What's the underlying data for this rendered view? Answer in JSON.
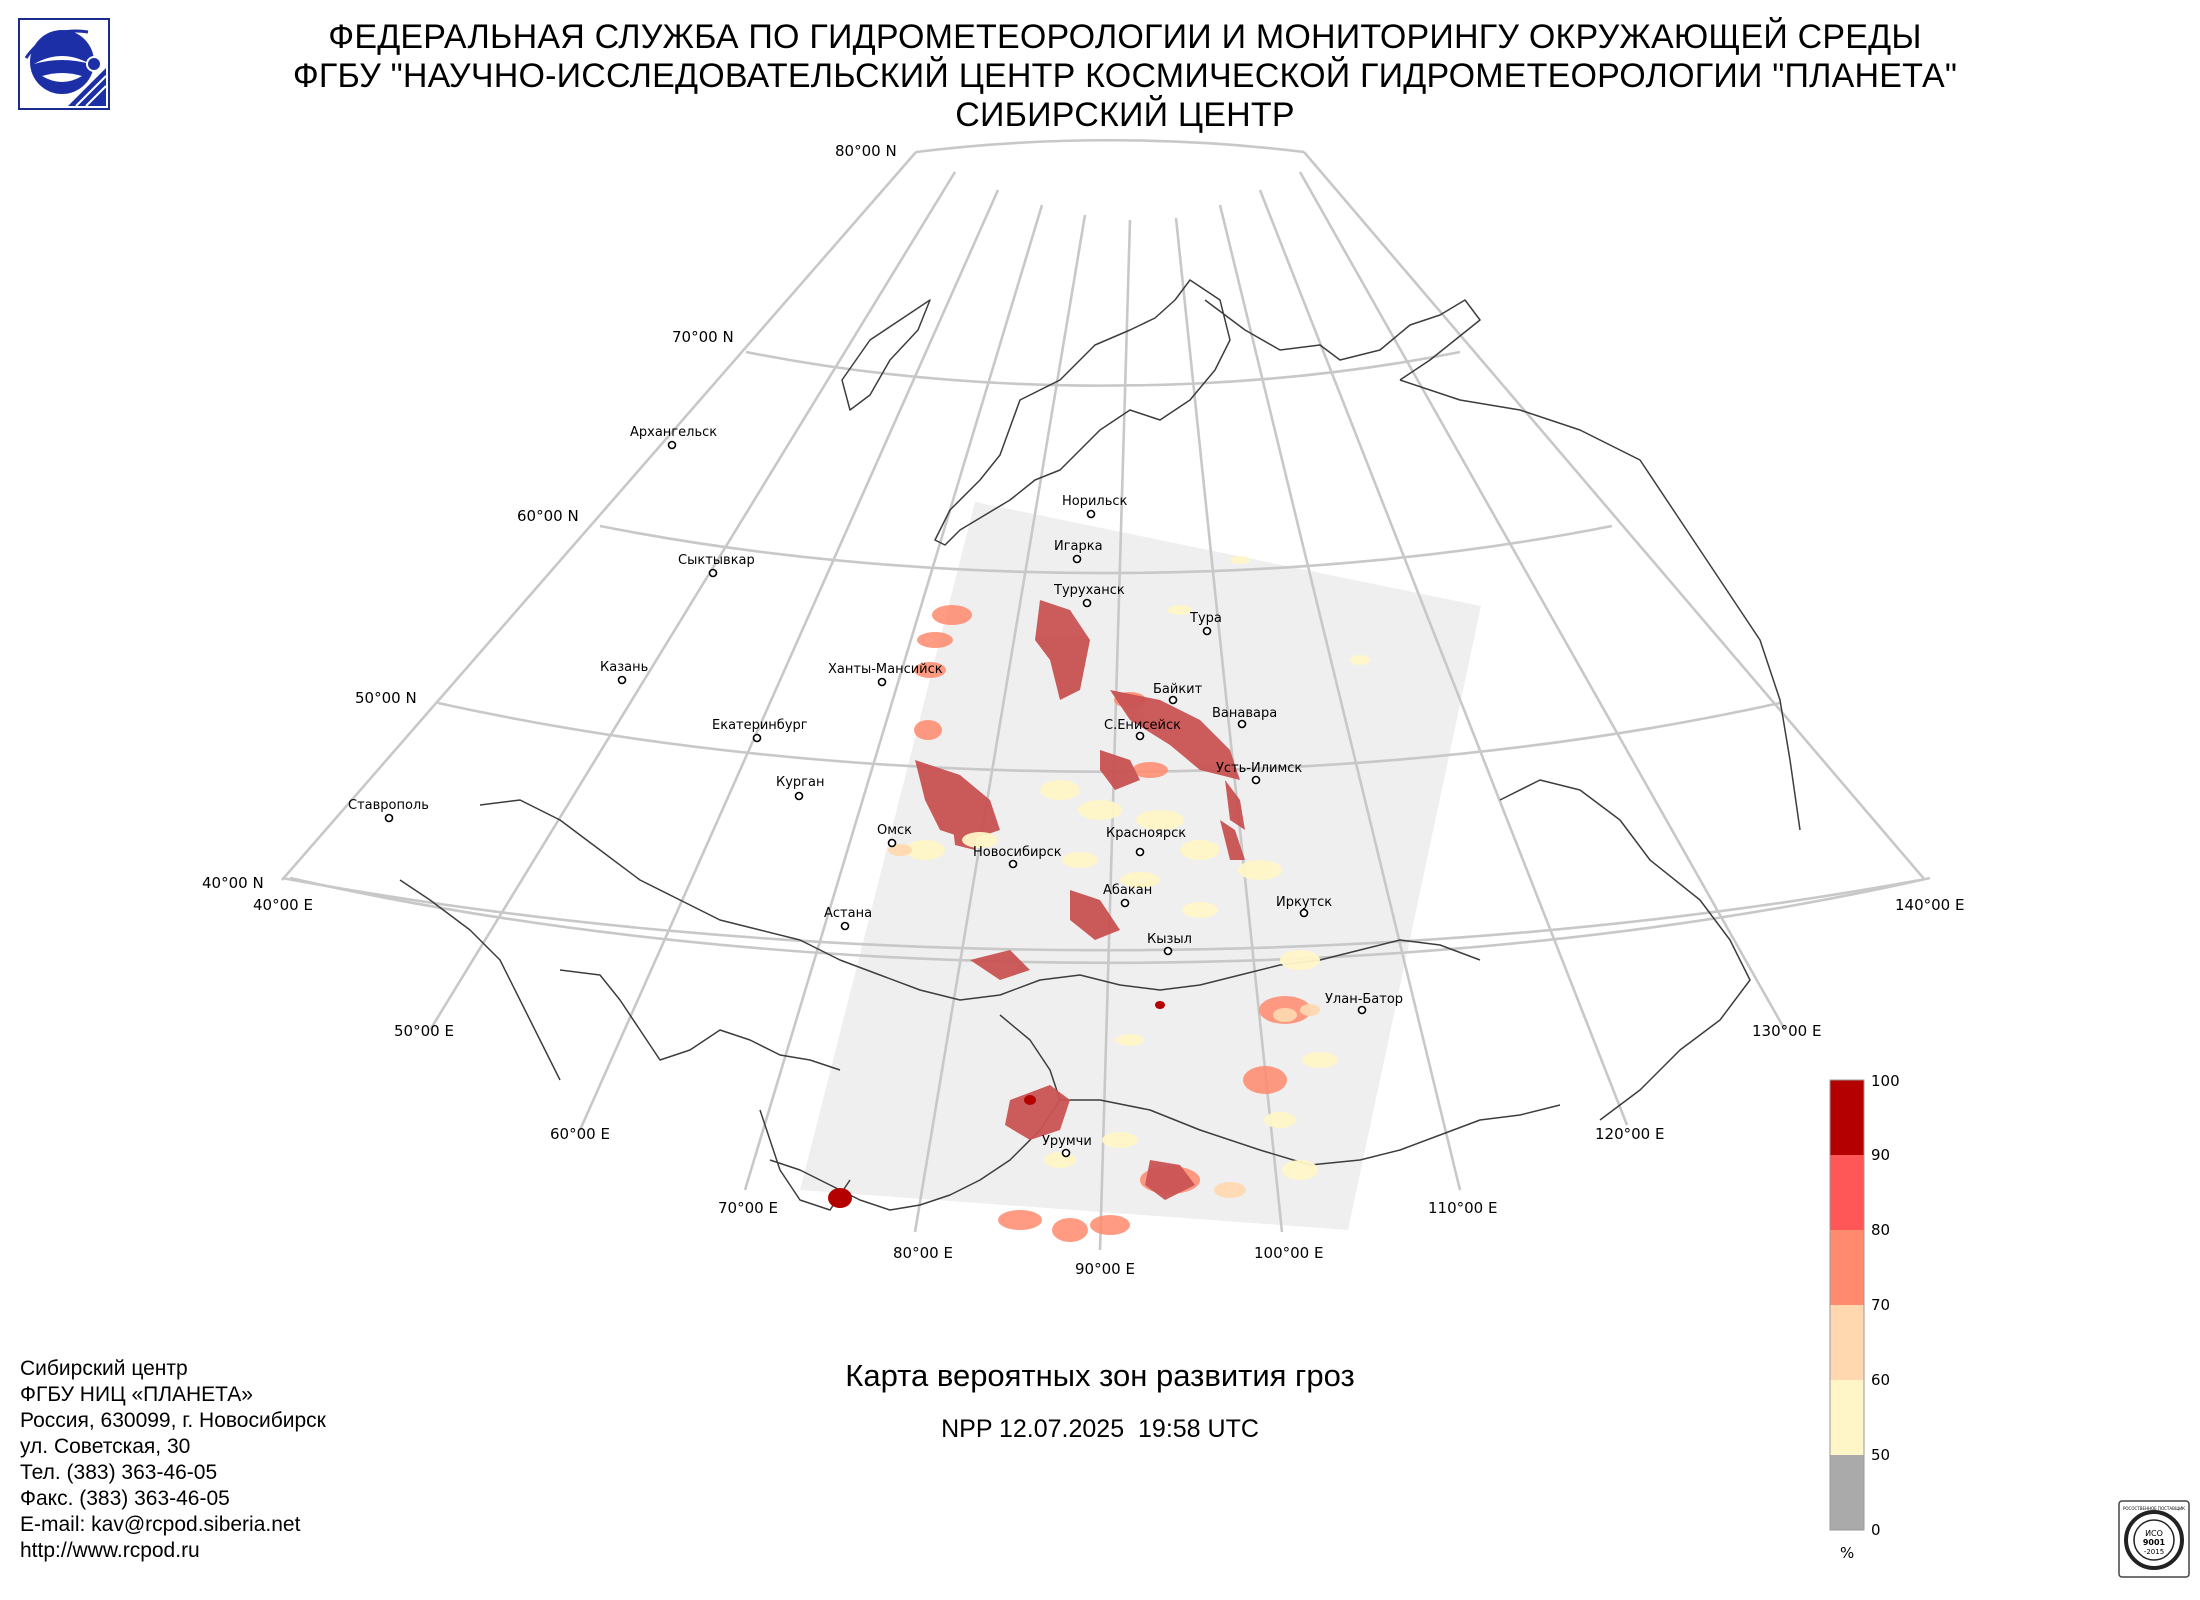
{
  "header": {
    "line1": "ФЕДЕРАЛЬНАЯ СЛУЖБА ПО ГИДРОМЕТЕОРОЛОГИИ И МОНИТОРИНГУ ОКРУЖАЮЩЕЙ СРЕДЫ",
    "line2": "ФГБУ \"НАУЧНО-ИССЛЕДОВАТЕЛЬСКИЙ ЦЕНТР КОСМИЧЕСКОЙ ГИДРОМЕТЕОРОЛОГИИ \"ПЛАНЕТА\"",
    "line3": "СИБИРСКИЙ ЦЕНТР",
    "logo_icon": "planeta-logo-icon"
  },
  "map": {
    "latitude_labels": [
      "80°00 N",
      "70°00 N",
      "60°00 N",
      "50°00 N",
      "40°00 N"
    ],
    "longitude_labels": [
      "40°00 E",
      "50°00 E",
      "60°00 E",
      "70°00 E",
      "80°00 E",
      "90°00 E",
      "100°00 E",
      "110°00 E",
      "120°00 E",
      "130°00 E",
      "140°00 E"
    ],
    "cities": [
      "Норильск",
      "Игарка",
      "Архангельск",
      "Туруханск",
      "Тура",
      "Сыктывкар",
      "Ханты-Мансийск",
      "Казань",
      "Байкит",
      "Ванавара",
      "Екатеринбург",
      "С.Енисейск",
      "Усть-Илимск",
      "Курган",
      "Ставрополь",
      "Омск",
      "Красноярск",
      "Новосибирск",
      "Абакан",
      "Иркутск",
      "Астана",
      "Кызыл",
      "Улан-Батор",
      "Урумчи"
    ],
    "colors": {
      "grid": "#c8c8c8",
      "coastline": "#3d3d3d",
      "swath": "#efefef"
    }
  },
  "title": {
    "main": "Карта вероятных зон развития гроз",
    "sub": "NPP 12.07.2025  19:58 UTC"
  },
  "colorbar": {
    "ticks": [
      "100",
      "90",
      "80",
      "70",
      "60",
      "50",
      "0"
    ],
    "unit": "%",
    "colors": [
      "#b50000",
      "#ff5757",
      "#ff8a6d",
      "#ffd8b0",
      "#fff6c8",
      "#aaaaaa"
    ]
  },
  "contacts": {
    "line1": "Сибирский центр",
    "line2": "ФГБУ НИЦ «ПЛАНЕТА»",
    "line3": "Россия, 630099, г. Новосибирск",
    "line4": "ул. Советская, 30",
    "line5": "Тел. (383) 363-46-05",
    "line6": "Факс. (383) 363-46-05",
    "line7": "E-mail: kav@rcpod.siberia.net",
    "line8": "http://www.rcpod.ru"
  },
  "iso_badge": {
    "ring_text": "РОСОСТВЕННОЕ ПОСТАВЩИК",
    "standard_line1": "ИСО",
    "standard_line2": "9001",
    "standard_line3": "-2015"
  }
}
